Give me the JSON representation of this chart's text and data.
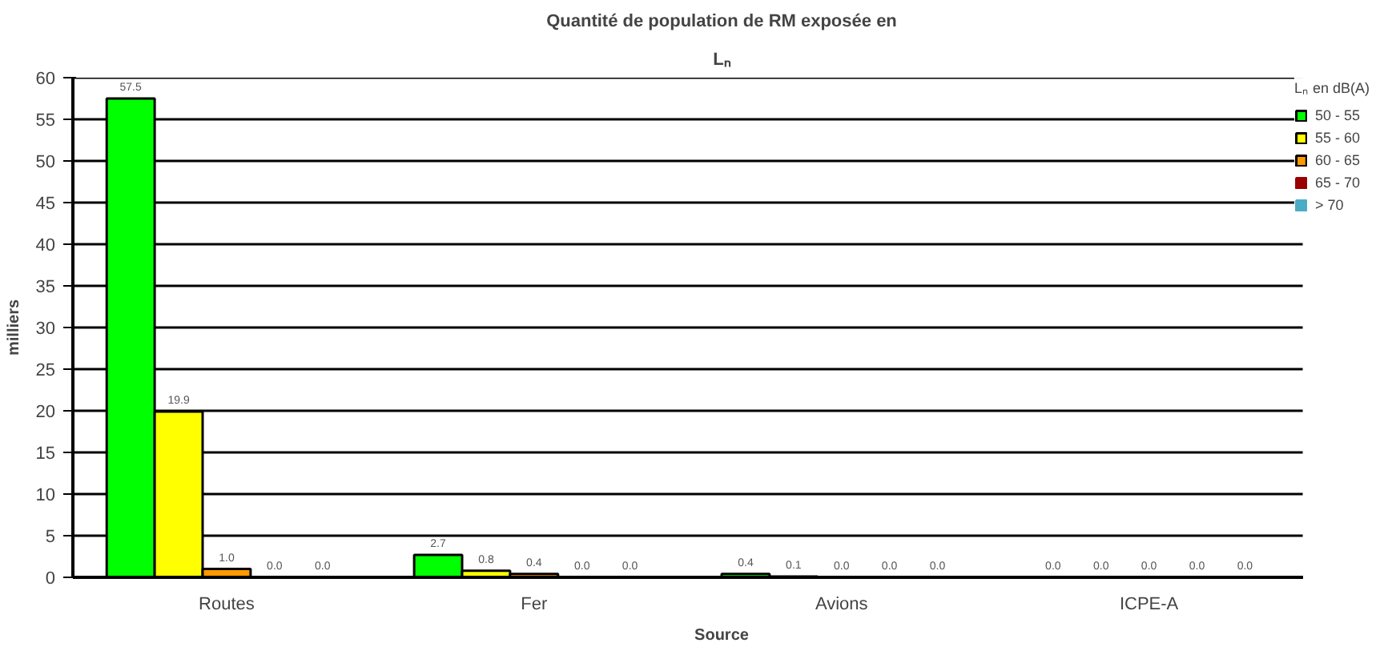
{
  "chart_data": {
    "type": "bar",
    "title": "Quantité de population de RM exposée en",
    "subtitle": "Lₙ",
    "xlabel": "Source",
    "ylabel": "milliers",
    "legend_title": "Lₙ en dB(A)",
    "categories": [
      "Routes",
      "Fer",
      "Avions",
      "ICPE-A"
    ],
    "series": [
      {
        "name": "50 - 55",
        "color": "#00ff00",
        "values": [
          57.5,
          2.7,
          0.4,
          0.0
        ],
        "value_labels": [
          "57.5",
          "2.7",
          "0.4",
          "0.0"
        ]
      },
      {
        "name": "55 - 60",
        "color": "#ffff00",
        "values": [
          19.9,
          0.8,
          0.1,
          0.0
        ],
        "value_labels": [
          "19.9",
          "0.8",
          "0.1",
          "0.0"
        ]
      },
      {
        "name": "60 - 65",
        "color": "#ff9900",
        "values": [
          1.0,
          0.4,
          0.0,
          0.0
        ],
        "value_labels": [
          "1.0",
          "0.4",
          "0.0",
          "0.0"
        ]
      },
      {
        "name": "65 - 70",
        "color": "#990000",
        "values": [
          0.0,
          0.0,
          0.0,
          0.0
        ],
        "value_labels": [
          "0.0",
          "0.0",
          "0.0",
          "0.0"
        ]
      },
      {
        "name": "> 70",
        "color": "#4bacc6",
        "values": [
          0.0,
          0.0,
          0.0,
          0.0
        ],
        "value_labels": [
          "0.0",
          "0.0",
          "0.0",
          "0.0"
        ]
      }
    ],
    "ylim": [
      0,
      60
    ],
    "yticks": [
      0,
      5,
      10,
      15,
      20,
      25,
      30,
      35,
      40,
      45,
      50,
      55,
      60
    ],
    "grid": "y",
    "legend": "right"
  }
}
